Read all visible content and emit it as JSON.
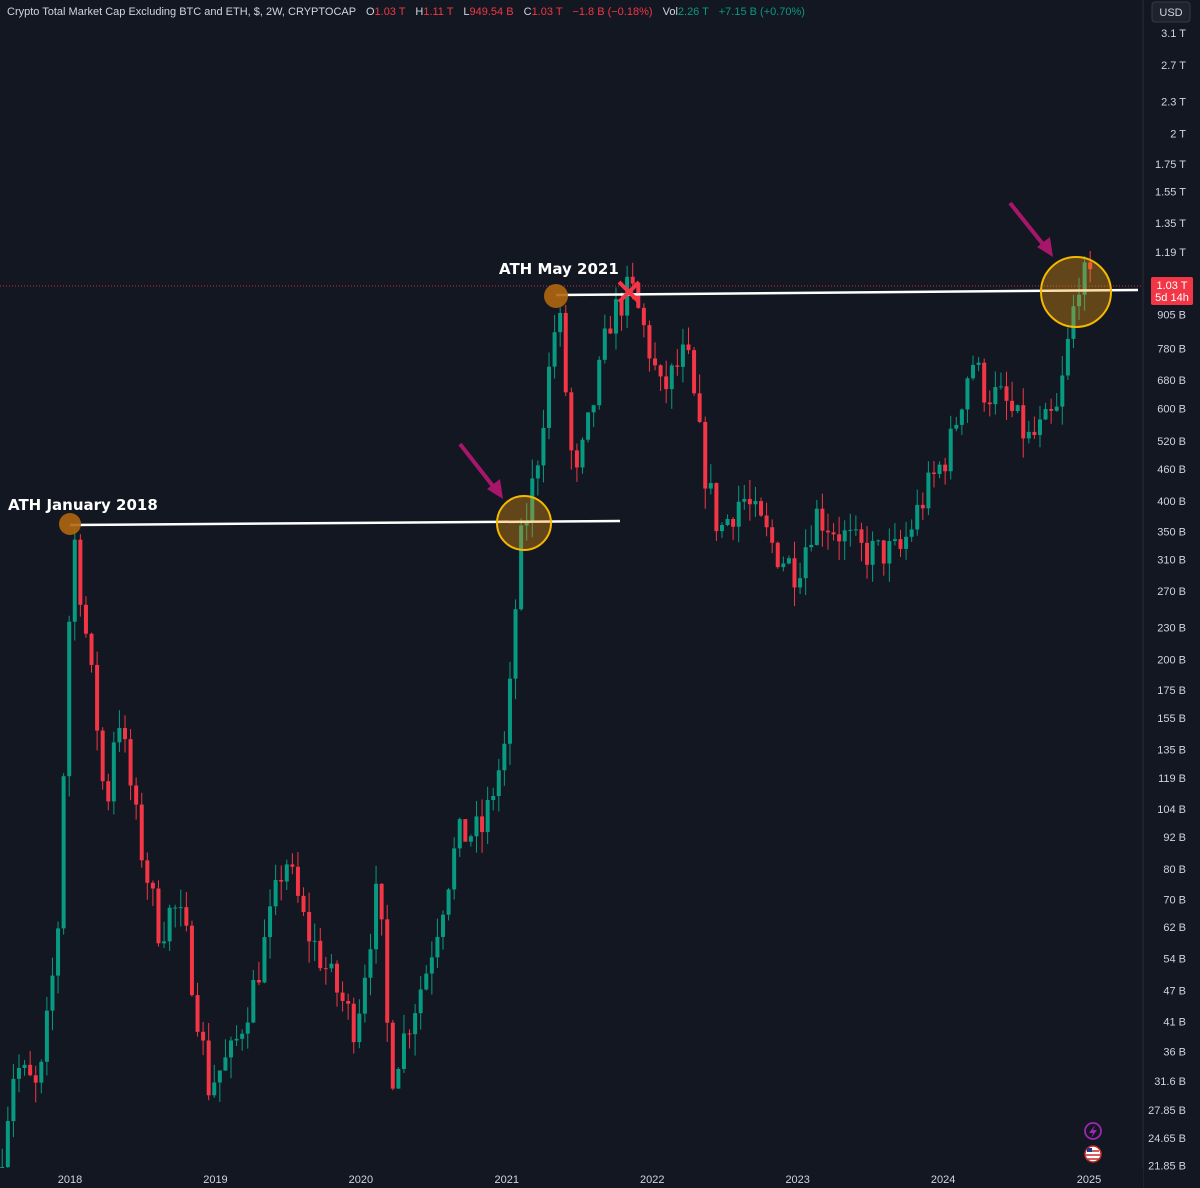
{
  "header": {
    "symbol_title": "Crypto Total Market Cap Excluding BTC and ETH, $, 2W, CRYPTOCAP",
    "o_label": "O",
    "o_value": "1.03 T",
    "h_label": "H",
    "h_value": "1.11 T",
    "l_label": "L",
    "l_value": "949.54 B",
    "c_label": "C",
    "c_value": "1.03 T",
    "change": "−1.8 B (−0.18%)",
    "vol_label": "Vol",
    "vol_value": "2.26 T",
    "vol_change": "+7.15 B (+0.70%)"
  },
  "price_scale": {
    "currency": "USD",
    "current_price": "1.03 T",
    "countdown": "5d 14h"
  },
  "colors": {
    "background": "#131722",
    "up": "#089981",
    "down": "#f23645",
    "text": "#d1d4dc",
    "annotation_line": "#ffffff",
    "circle_fill": "#f59e0b",
    "arrow": "#a8166a",
    "cross": "#f23645"
  },
  "annotations": {
    "ath_2018": "ATH January 2018",
    "ath_2021": "ATH May 2021"
  },
  "icons": [
    "lightning-icon",
    "us-flag-icon"
  ],
  "chart_data": {
    "type": "candlestick",
    "title": "Crypto Total Market Cap Excluding BTC and ETH, $, 2W, CRYPTOCAP",
    "y_scale": "log",
    "y_unit": "USD",
    "y_range": [
      21850000000.0,
      3300000000000.0
    ],
    "x_range": [
      "2017-07-01",
      "2025-01-20"
    ],
    "y_ticks": [
      {
        "label": "3.1 T",
        "value": 3100000000000.0
      },
      {
        "label": "2.7 T",
        "value": 2700000000000.0
      },
      {
        "label": "2.3 T",
        "value": 2300000000000.0
      },
      {
        "label": "2 T",
        "value": 2000000000000.0
      },
      {
        "label": "1.75 T",
        "value": 1750000000000.0
      },
      {
        "label": "1.55 T",
        "value": 1550000000000.0
      },
      {
        "label": "1.35 T",
        "value": 1350000000000.0
      },
      {
        "label": "1.19 T",
        "value": 1190000000000.0
      },
      {
        "label": "905 B",
        "value": 905000000000.0
      },
      {
        "label": "780 B",
        "value": 780000000000.0
      },
      {
        "label": "680 B",
        "value": 680000000000.0
      },
      {
        "label": "600 B",
        "value": 600000000000.0
      },
      {
        "label": "520 B",
        "value": 520000000000.0
      },
      {
        "label": "460 B",
        "value": 460000000000.0
      },
      {
        "label": "400 B",
        "value": 400000000000.0
      },
      {
        "label": "350 B",
        "value": 350000000000.0
      },
      {
        "label": "310 B",
        "value": 310000000000.0
      },
      {
        "label": "270 B",
        "value": 270000000000.0
      },
      {
        "label": "230 B",
        "value": 230000000000.0
      },
      {
        "label": "200 B",
        "value": 200000000000.0
      },
      {
        "label": "175 B",
        "value": 175000000000.0
      },
      {
        "label": "155 B",
        "value": 155000000000.0
      },
      {
        "label": "135 B",
        "value": 135000000000.0
      },
      {
        "label": "119 B",
        "value": 119000000000.0
      },
      {
        "label": "104 B",
        "value": 104000000000.0
      },
      {
        "label": "92 B",
        "value": 92000000000.0
      },
      {
        "label": "80 B",
        "value": 80000000000.0
      },
      {
        "label": "70 B",
        "value": 70000000000.0
      },
      {
        "label": "62 B",
        "value": 62000000000.0
      },
      {
        "label": "54 B",
        "value": 54000000000.0
      },
      {
        "label": "47 B",
        "value": 47000000000.0
      },
      {
        "label": "41 B",
        "value": 41000000000.0
      },
      {
        "label": "36 B",
        "value": 36000000000.0
      },
      {
        "label": "31.6 B",
        "value": 31600000000.0
      },
      {
        "label": "27.85 B",
        "value": 27850000000.0
      },
      {
        "label": "24.65 B",
        "value": 24650000000.0
      },
      {
        "label": "21.85 B",
        "value": 21850000000.0
      }
    ],
    "x_ticks": [
      {
        "label": "2018",
        "date": "2018-01-01"
      },
      {
        "label": "2019",
        "date": "2019-01-01"
      },
      {
        "label": "2020",
        "date": "2020-01-01"
      },
      {
        "label": "2021",
        "date": "2021-01-01"
      },
      {
        "label": "2022",
        "date": "2022-01-01"
      },
      {
        "label": "2023",
        "date": "2023-01-01"
      },
      {
        "label": "2024",
        "date": "2024-01-01"
      },
      {
        "label": "2025",
        "date": "2025-01-01"
      }
    ],
    "price_path": [
      {
        "date": "2017-07-01",
        "value": 20000000000.0
      },
      {
        "date": "2017-08-15",
        "value": 34000000000.0
      },
      {
        "date": "2017-10-15",
        "value": 30000000000.0
      },
      {
        "date": "2017-12-01",
        "value": 60000000000.0
      },
      {
        "date": "2017-12-25",
        "value": 190000000000.0
      },
      {
        "date": "2018-01-08",
        "value": 360000000000.0
      },
      {
        "date": "2018-02-05",
        "value": 240000000000.0
      },
      {
        "date": "2018-03-15",
        "value": 140000000000.0
      },
      {
        "date": "2018-04-01",
        "value": 100000000000.0
      },
      {
        "date": "2018-04-29",
        "value": 165000000000.0
      },
      {
        "date": "2018-06-25",
        "value": 90000000000.0
      },
      {
        "date": "2018-08-15",
        "value": 60000000000.0
      },
      {
        "date": "2018-09-15",
        "value": 68000000000.0
      },
      {
        "date": "2018-10-15",
        "value": 62000000000.0
      },
      {
        "date": "2018-12-15",
        "value": 31000000000.0
      },
      {
        "date": "2019-02-15",
        "value": 36000000000.0
      },
      {
        "date": "2019-04-15",
        "value": 50000000000.0
      },
      {
        "date": "2019-06-25",
        "value": 85000000000.0
      },
      {
        "date": "2019-08-15",
        "value": 62000000000.0
      },
      {
        "date": "2019-10-15",
        "value": 50000000000.0
      },
      {
        "date": "2019-12-18",
        "value": 40000000000.0
      },
      {
        "date": "2020-02-14",
        "value": 75000000000.0
      },
      {
        "date": "2020-03-15",
        "value": 32000000000.0
      },
      {
        "date": "2020-06-15",
        "value": 52000000000.0
      },
      {
        "date": "2020-09-01",
        "value": 92000000000.0
      },
      {
        "date": "2020-11-01",
        "value": 95000000000.0
      },
      {
        "date": "2021-01-01",
        "value": 140000000000.0
      },
      {
        "date": "2021-02-01",
        "value": 320000000000.0
      },
      {
        "date": "2021-03-15",
        "value": 460000000000.0
      },
      {
        "date": "2021-05-10",
        "value": 950000000000.0
      },
      {
        "date": "2021-06-20",
        "value": 420000000000.0
      },
      {
        "date": "2021-08-15",
        "value": 660000000000.0
      },
      {
        "date": "2021-09-15",
        "value": 880000000000.0
      },
      {
        "date": "2021-11-08",
        "value": 1020000000000.0
      },
      {
        "date": "2021-12-15",
        "value": 830000000000.0
      },
      {
        "date": "2022-01-24",
        "value": 640000000000.0
      },
      {
        "date": "2022-03-28",
        "value": 770000000000.0
      },
      {
        "date": "2022-05-12",
        "value": 460000000000.0
      },
      {
        "date": "2022-06-18",
        "value": 350000000000.0
      },
      {
        "date": "2022-08-14",
        "value": 410000000000.0
      },
      {
        "date": "2022-11-10",
        "value": 320000000000.0
      },
      {
        "date": "2022-12-30",
        "value": 295000000000.0
      },
      {
        "date": "2023-02-15",
        "value": 380000000000.0
      },
      {
        "date": "2023-06-15",
        "value": 320000000000.0
      },
      {
        "date": "2023-09-15",
        "value": 320000000000.0
      },
      {
        "date": "2023-11-15",
        "value": 410000000000.0
      },
      {
        "date": "2024-01-15",
        "value": 500000000000.0
      },
      {
        "date": "2024-03-12",
        "value": 750000000000.0
      },
      {
        "date": "2024-04-15",
        "value": 650000000000.0
      },
      {
        "date": "2024-06-01",
        "value": 620000000000.0
      },
      {
        "date": "2024-08-05",
        "value": 520000000000.0
      },
      {
        "date": "2024-10-15",
        "value": 590000000000.0
      },
      {
        "date": "2024-11-10",
        "value": 800000000000.0
      },
      {
        "date": "2024-12-08",
        "value": 1080000000000.0
      },
      {
        "date": "2025-01-05",
        "value": 1030000000000.0
      }
    ]
  }
}
